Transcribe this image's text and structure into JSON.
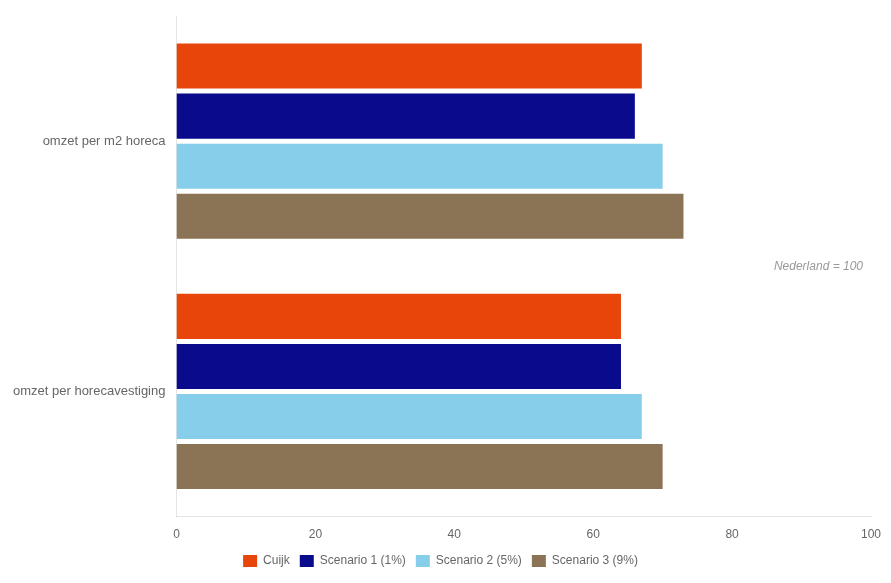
{
  "chart_data": {
    "type": "bar",
    "orientation": "horizontal",
    "categories": [
      "omzet per m2 horeca",
      "omzet per horecavestiging"
    ],
    "series": [
      {
        "name": "Cuijk",
        "color": "#E8450A",
        "values": [
          67,
          64
        ]
      },
      {
        "name": "Scenario 1 (1%)",
        "color": "#0A0A8C",
        "values": [
          66,
          64
        ]
      },
      {
        "name": "Scenario 2 (5%)",
        "color": "#87CEEB",
        "values": [
          70,
          67
        ]
      },
      {
        "name": "Scenario 3 (9%)",
        "color": "#8B7355",
        "values": [
          73,
          70
        ]
      }
    ],
    "xlim": [
      0,
      100
    ],
    "xticks": [
      0,
      20,
      40,
      60,
      80,
      100
    ],
    "annotation": "Nederland = 100",
    "grid": false,
    "legend": "bottom"
  }
}
